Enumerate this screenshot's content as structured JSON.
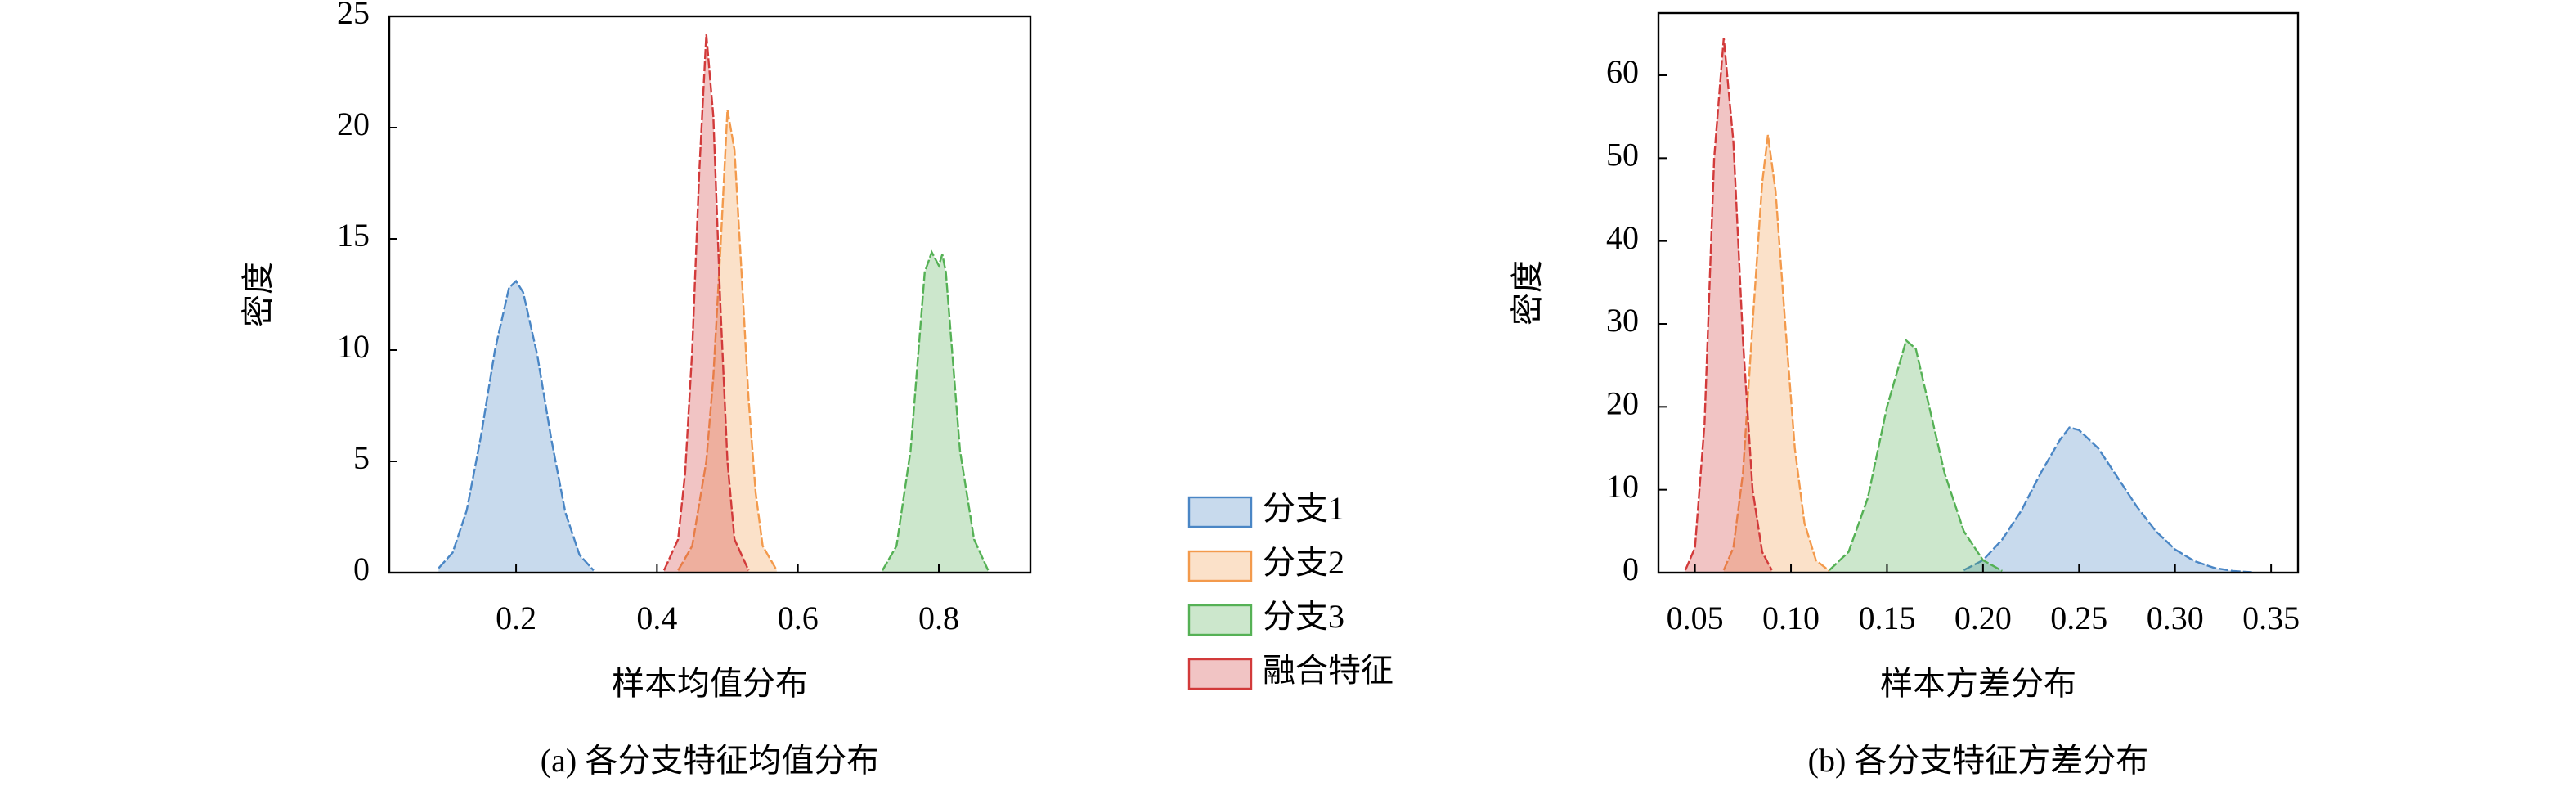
{
  "chart_data": [
    {
      "type": "area",
      "caption": "(a) 各分支特征均值分布",
      "xlabel": "样本均值分布",
      "ylabel": "密度",
      "xlim": [
        0.02,
        0.93
      ],
      "ylim": [
        0,
        25
      ],
      "xticks": [
        0.2,
        0.4,
        0.6,
        0.8
      ],
      "yticks": [
        0,
        5,
        10,
        15,
        20,
        25
      ],
      "legend": "outside-right",
      "series": [
        {
          "name": "分支1",
          "color": "#4a86c5",
          "x": [
            0.09,
            0.11,
            0.13,
            0.15,
            0.17,
            0.19,
            0.2,
            0.21,
            0.23,
            0.25,
            0.27,
            0.29,
            0.31
          ],
          "values": [
            0.2,
            0.9,
            2.8,
            6.1,
            10.0,
            12.8,
            13.1,
            12.6,
            9.8,
            6.0,
            2.7,
            0.8,
            0.1
          ]
        },
        {
          "name": "分支2",
          "color": "#f39a4c",
          "x": [
            0.43,
            0.45,
            0.47,
            0.48,
            0.49,
            0.5,
            0.51,
            0.52,
            0.53,
            0.54,
            0.55,
            0.57
          ],
          "values": [
            0.1,
            1.2,
            5.0,
            8.8,
            14.5,
            20.8,
            19.0,
            13.5,
            7.8,
            3.6,
            1.2,
            0.1
          ]
        },
        {
          "name": "分支3",
          "color": "#55b155",
          "x": [
            0.72,
            0.74,
            0.76,
            0.77,
            0.78,
            0.79,
            0.8,
            0.805,
            0.81,
            0.82,
            0.83,
            0.85,
            0.87
          ],
          "values": [
            0.1,
            1.2,
            5.5,
            9.5,
            13.5,
            14.4,
            13.8,
            14.3,
            13.5,
            9.5,
            5.5,
            1.5,
            0.1
          ]
        },
        {
          "name": "融合特征",
          "color": "#d23a3a",
          "x": [
            0.41,
            0.43,
            0.44,
            0.45,
            0.46,
            0.47,
            0.48,
            0.49,
            0.5,
            0.51,
            0.53
          ],
          "values": [
            0.1,
            1.5,
            4.5,
            10.0,
            18.0,
            24.2,
            20.5,
            12.0,
            5.0,
            1.5,
            0.1
          ]
        }
      ]
    },
    {
      "type": "area",
      "caption": "(b) 各分支特征方差分布",
      "xlabel": "样本方差分布",
      "ylabel": "密度",
      "xlim": [
        0.031,
        0.364
      ],
      "ylim": [
        0,
        67.5
      ],
      "xticks": [
        0.05,
        {
          "value": 0.1,
          "label": "0.10"
        },
        0.15,
        {
          "value": 0.2,
          "label": "0.20"
        },
        0.25,
        {
          "value": 0.3,
          "label": "0.30"
        },
        0.35
      ],
      "yticks": [
        0,
        10,
        20,
        30,
        40,
        50,
        60
      ],
      "series": [
        {
          "color": "#4a86c5",
          "x": [
            0.19,
            0.2,
            0.21,
            0.22,
            0.23,
            0.24,
            0.245,
            0.25,
            0.26,
            0.27,
            0.28,
            0.29,
            0.3,
            0.31,
            0.32,
            0.33,
            0.34
          ],
          "values": [
            0.3,
            1.5,
            4,
            7.5,
            12,
            16,
            17.5,
            17.2,
            15,
            11.5,
            8,
            5,
            2.8,
            1.4,
            0.6,
            0.2,
            0.05
          ]
        },
        {
          "color": "#f39a4c",
          "x": [
            0.065,
            0.07,
            0.075,
            0.08,
            0.085,
            0.088,
            0.092,
            0.097,
            0.102,
            0.107,
            0.113,
            0.12
          ],
          "values": [
            0.3,
            3,
            12,
            30,
            47,
            52.8,
            46,
            30,
            15,
            6,
            1.5,
            0.2
          ]
        },
        {
          "color": "#55b155",
          "x": [
            0.12,
            0.13,
            0.14,
            0.15,
            0.16,
            0.165,
            0.17,
            0.18,
            0.19,
            0.2,
            0.21
          ],
          "values": [
            0.3,
            2.5,
            9,
            20,
            28,
            27,
            22,
            12,
            5,
            1.5,
            0.2
          ]
        },
        {
          "color": "#d23a3a",
          "x": [
            0.045,
            0.05,
            0.055,
            0.06,
            0.065,
            0.07,
            0.075,
            0.08,
            0.085,
            0.09
          ],
          "values": [
            0.3,
            3,
            18,
            50,
            64.5,
            52,
            28,
            10,
            2.5,
            0.3
          ]
        }
      ]
    }
  ]
}
